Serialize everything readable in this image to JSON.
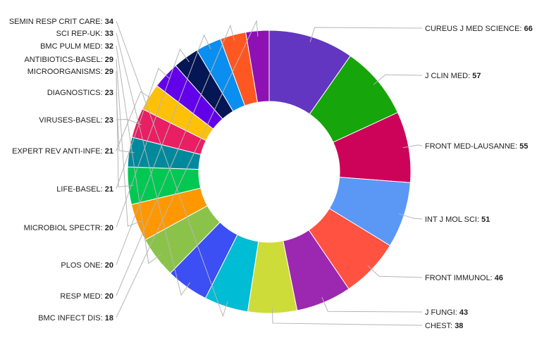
{
  "chart_data": {
    "type": "pie",
    "variant": "donut",
    "slices": [
      {
        "label": "CUREUS J MED SCIENCE",
        "value": 66,
        "color": "#6236c0"
      },
      {
        "label": "J CLIN MED",
        "value": 57,
        "color": "#16a50b"
      },
      {
        "label": "FRONT MED-LAUSANNE",
        "value": 55,
        "color": "#cc0359"
      },
      {
        "label": "INT J MOL SCI",
        "value": 51,
        "color": "#5b97f5"
      },
      {
        "label": "FRONT IMMUNOL",
        "value": 46,
        "color": "#ff5240"
      },
      {
        "label": "J FUNGI",
        "value": 43,
        "color": "#9c27b0"
      },
      {
        "label": "CHEST",
        "value": 38,
        "color": "#cddc39"
      },
      {
        "label": "SEMIN RESP CRIT CARE",
        "value": 34,
        "color": "#00bcd4"
      },
      {
        "label": "SCI REP-UK",
        "value": 33,
        "color": "#3b4ff4"
      },
      {
        "label": "BMC PULM MED",
        "value": 32,
        "color": "#8bc34a"
      },
      {
        "label": "ANTIBIOTICS-BASEL",
        "value": 29,
        "color": "#ff9800"
      },
      {
        "label": "MICROORGANISMS",
        "value": 29,
        "color": "#00c853"
      },
      {
        "label": "DIAGNOSTICS",
        "value": 23,
        "color": "#00899c"
      },
      {
        "label": "VIRUSES-BASEL",
        "value": 23,
        "color": "#e91e63"
      },
      {
        "label": "EXPERT REV ANTI-INFE",
        "value": 21,
        "color": "#ffc107"
      },
      {
        "label": "LIFE-BASEL",
        "value": 21,
        "color": "#6200ea"
      },
      {
        "label": "MICROBIOL SPECTR",
        "value": 20,
        "color": "#041653"
      },
      {
        "label": "PLOS ONE",
        "value": 20,
        "color": "#0a8ef0"
      },
      {
        "label": "RESP MED",
        "value": 20,
        "color": "#ff5722"
      },
      {
        "label": "BMC INFECT DIS",
        "value": 18,
        "color": "#8e12b3"
      }
    ],
    "title": "",
    "legend": "none"
  }
}
